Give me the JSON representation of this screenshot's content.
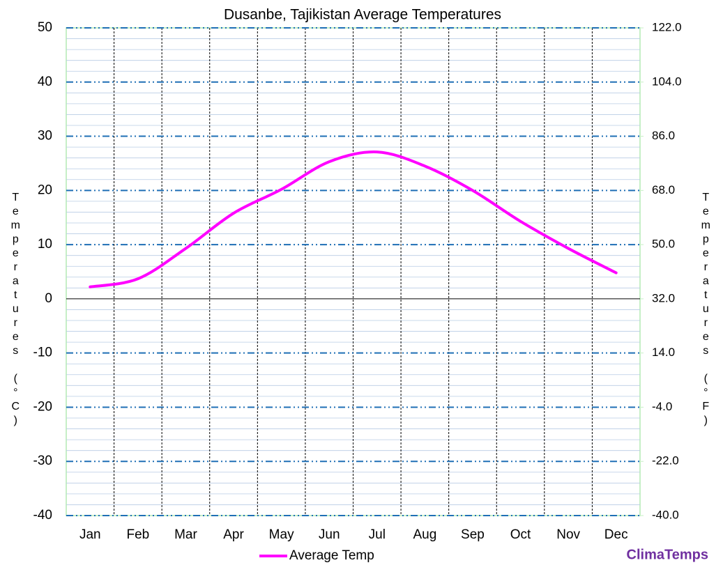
{
  "chart_data": {
    "type": "line",
    "title": "Dusanbe, Tajikistan Average Temperatures",
    "categories": [
      "Jan",
      "Feb",
      "Mar",
      "Apr",
      "May",
      "Jun",
      "Jul",
      "Aug",
      "Sep",
      "Oct",
      "Nov",
      "Dec"
    ],
    "series": [
      {
        "name": "Average Temp",
        "color": "#ff00ff",
        "values": [
          2.2,
          3.7,
          9.3,
          15.8,
          20.2,
          25.3,
          27.1,
          24.5,
          20,
          14.3,
          9.3,
          4.8
        ]
      }
    ],
    "ylabel": "Temperatures (°C)",
    "y2label": "Temperatures (°F)",
    "ylim": [
      -40,
      50
    ],
    "yticks": [
      -40,
      -30,
      -20,
      -10,
      0,
      10,
      20,
      30,
      40,
      50
    ],
    "y2lim": [
      -40,
      122
    ],
    "y2ticks": [
      {
        "value": -40,
        "label": "-40.0"
      },
      {
        "value": -22,
        "label": "-22.0"
      },
      {
        "value": -4,
        "label": "-4.0"
      },
      {
        "value": 14,
        "label": "14.0"
      },
      {
        "value": 32,
        "label": "32.0"
      },
      {
        "value": 50,
        "label": "50.0"
      },
      {
        "value": 68,
        "label": "68.0"
      },
      {
        "value": 86,
        "label": "86.0"
      },
      {
        "value": 104,
        "label": "104.0"
      },
      {
        "value": 122,
        "label": "122.0"
      }
    ],
    "grid": true,
    "legend": "bottom",
    "brand": "ClimaTemps"
  }
}
